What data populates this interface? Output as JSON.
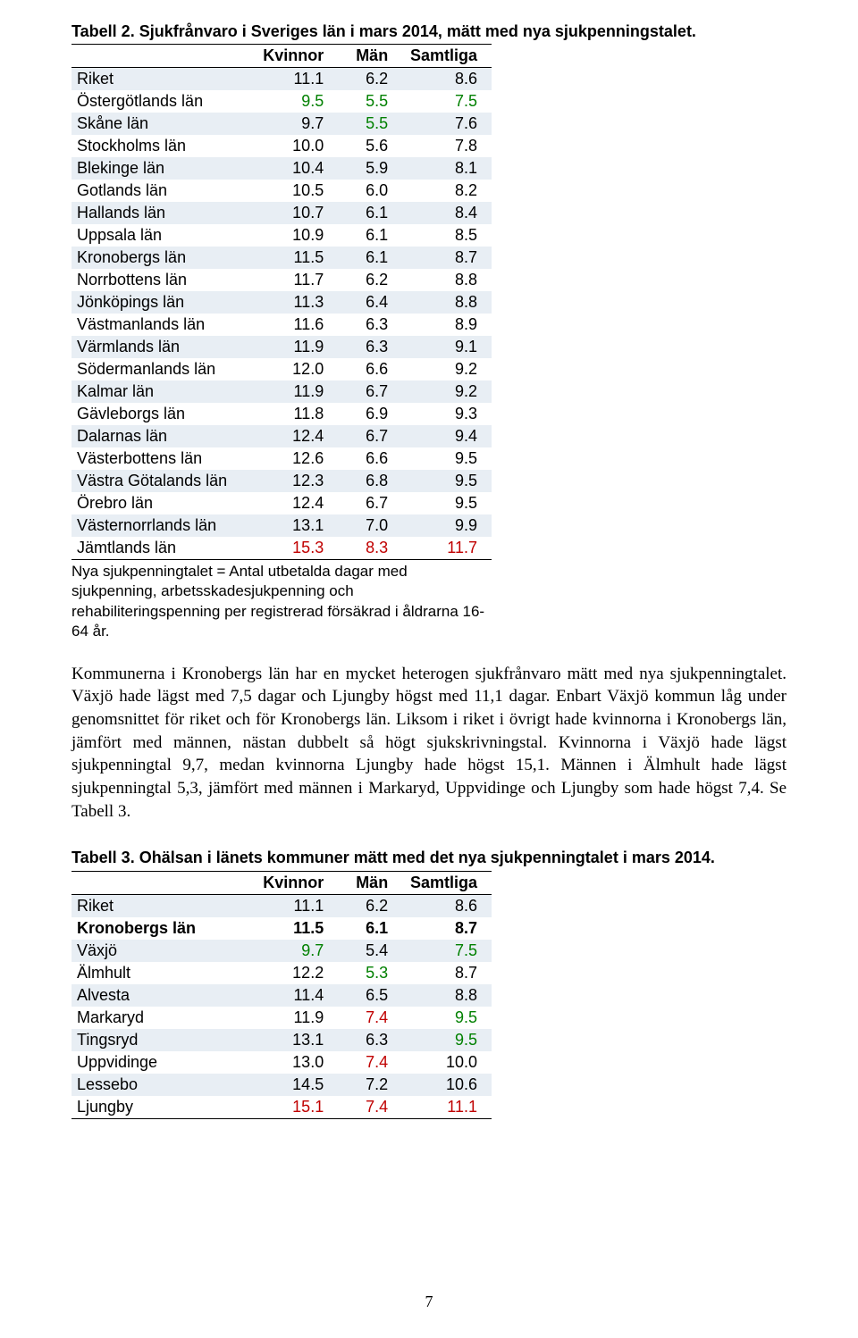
{
  "table1": {
    "title": "Tabell 2. Sjukfrånvaro i Sveriges län i mars 2014, mätt med nya sjukpenningstalet.",
    "headers": [
      "",
      "Kvinnor",
      "Män",
      "Samtliga"
    ],
    "rows": [
      {
        "label": "Riket",
        "kv": "11.1",
        "man": "6.2",
        "tot": "8.6",
        "stripe": true
      },
      {
        "label": "Östergötlands län",
        "kv": "9.5",
        "man": "5.5",
        "tot": "7.5",
        "stripe": false,
        "kv_c": "green",
        "man_c": "green",
        "tot_c": "green"
      },
      {
        "label": "Skåne län",
        "kv": "9.7",
        "man": "5.5",
        "tot": "7.6",
        "stripe": true,
        "man_c": "green"
      },
      {
        "label": "Stockholms län",
        "kv": "10.0",
        "man": "5.6",
        "tot": "7.8",
        "stripe": false
      },
      {
        "label": "Blekinge län",
        "kv": "10.4",
        "man": "5.9",
        "tot": "8.1",
        "stripe": true
      },
      {
        "label": "Gotlands län",
        "kv": "10.5",
        "man": "6.0",
        "tot": "8.2",
        "stripe": false
      },
      {
        "label": "Hallands län",
        "kv": "10.7",
        "man": "6.1",
        "tot": "8.4",
        "stripe": true
      },
      {
        "label": "Uppsala län",
        "kv": "10.9",
        "man": "6.1",
        "tot": "8.5",
        "stripe": false
      },
      {
        "label": "Kronobergs län",
        "kv": "11.5",
        "man": "6.1",
        "tot": "8.7",
        "stripe": true
      },
      {
        "label": "Norrbottens län",
        "kv": "11.7",
        "man": "6.2",
        "tot": "8.8",
        "stripe": false
      },
      {
        "label": "Jönköpings län",
        "kv": "11.3",
        "man": "6.4",
        "tot": "8.8",
        "stripe": true
      },
      {
        "label": "Västmanlands län",
        "kv": "11.6",
        "man": "6.3",
        "tot": "8.9",
        "stripe": false
      },
      {
        "label": "Värmlands län",
        "kv": "11.9",
        "man": "6.3",
        "tot": "9.1",
        "stripe": true
      },
      {
        "label": "Södermanlands län",
        "kv": "12.0",
        "man": "6.6",
        "tot": "9.2",
        "stripe": false
      },
      {
        "label": "Kalmar län",
        "kv": "11.9",
        "man": "6.7",
        "tot": "9.2",
        "stripe": true
      },
      {
        "label": "Gävleborgs län",
        "kv": "11.8",
        "man": "6.9",
        "tot": "9.3",
        "stripe": false
      },
      {
        "label": "Dalarnas län",
        "kv": "12.4",
        "man": "6.7",
        "tot": "9.4",
        "stripe": true
      },
      {
        "label": "Västerbottens län",
        "kv": "12.6",
        "man": "6.6",
        "tot": "9.5",
        "stripe": false
      },
      {
        "label": "Västra Götalands län",
        "kv": "12.3",
        "man": "6.8",
        "tot": "9.5",
        "stripe": true
      },
      {
        "label": "Örebro län",
        "kv": "12.4",
        "man": "6.7",
        "tot": "9.5",
        "stripe": false
      },
      {
        "label": "Västernorrlands län",
        "kv": "13.1",
        "man": "7.0",
        "tot": "9.9",
        "stripe": true
      },
      {
        "label": "Jämtlands län",
        "kv": "15.3",
        "man": "8.3",
        "tot": "11.7",
        "stripe": false,
        "kv_c": "red",
        "man_c": "red",
        "tot_c": "red"
      }
    ],
    "footnote": "Nya sjukpenningtalet = Antal utbetalda dagar med sjukpenning, arbetsskadesjukpenning och rehabiliteringspenning per registrerad försäkrad i åldrarna 16-64 år."
  },
  "paragraph": "Kommunerna i Kronobergs län har en mycket heterogen sjukfrånvaro mätt med nya sjukpenningtalet. Växjö hade lägst med 7,5 dagar och Ljungby högst med 11,1 dagar. Enbart Växjö kommun låg under genomsnittet för riket och för Kronobergs län. Liksom i riket i övrigt hade kvinnorna i Kronobergs län, jämfört med männen, nästan dubbelt så högt sjukskrivningstal. Kvinnorna i Växjö hade lägst sjukpenningtal 9,7, medan kvinnorna Ljungby hade högst 15,1. Männen i Älmhult hade lägst sjukpenningtal 5,3, jämfört med männen i Markaryd, Uppvidinge och Ljungby som hade högst 7,4. Se Tabell 3.",
  "table2": {
    "title": "Tabell 3. Ohälsan i länets kommuner mätt med det nya sjukpenningtalet i mars 2014.",
    "headers": [
      "",
      "Kvinnor",
      "Män",
      "Samtliga"
    ],
    "rows": [
      {
        "label": "Riket",
        "kv": "11.1",
        "man": "6.2",
        "tot": "8.6",
        "stripe": true
      },
      {
        "label": "Kronobergs län",
        "kv": "11.5",
        "man": "6.1",
        "tot": "8.7",
        "stripe": false,
        "bold": true
      },
      {
        "label": "Växjö",
        "kv": "9.7",
        "man": "5.4",
        "tot": "7.5",
        "stripe": true,
        "kv_c": "green",
        "tot_c": "green"
      },
      {
        "label": "Älmhult",
        "kv": "12.2",
        "man": "5.3",
        "tot": "8.7",
        "stripe": false,
        "man_c": "green"
      },
      {
        "label": "Alvesta",
        "kv": "11.4",
        "man": "6.5",
        "tot": "8.8",
        "stripe": true
      },
      {
        "label": "Markaryd",
        "kv": "11.9",
        "man": "7.4",
        "tot": "9.5",
        "stripe": false,
        "man_c": "red",
        "tot_c": "green"
      },
      {
        "label": "Tingsryd",
        "kv": "13.1",
        "man": "6.3",
        "tot": "9.5",
        "stripe": true,
        "tot_c": "green"
      },
      {
        "label": "Uppvidinge",
        "kv": "13.0",
        "man": "7.4",
        "tot": "10.0",
        "stripe": false,
        "man_c": "red"
      },
      {
        "label": "Lessebo",
        "kv": "14.5",
        "man": "7.2",
        "tot": "10.6",
        "stripe": true
      },
      {
        "label": "Ljungby",
        "kv": "15.1",
        "man": "7.4",
        "tot": "11.1",
        "stripe": false,
        "kv_c": "red",
        "man_c": "red",
        "tot_c": "red"
      }
    ]
  },
  "page_number": "7",
  "colors": {
    "green": "#008000",
    "red": "#c00000",
    "stripe": "#e8eef4"
  }
}
